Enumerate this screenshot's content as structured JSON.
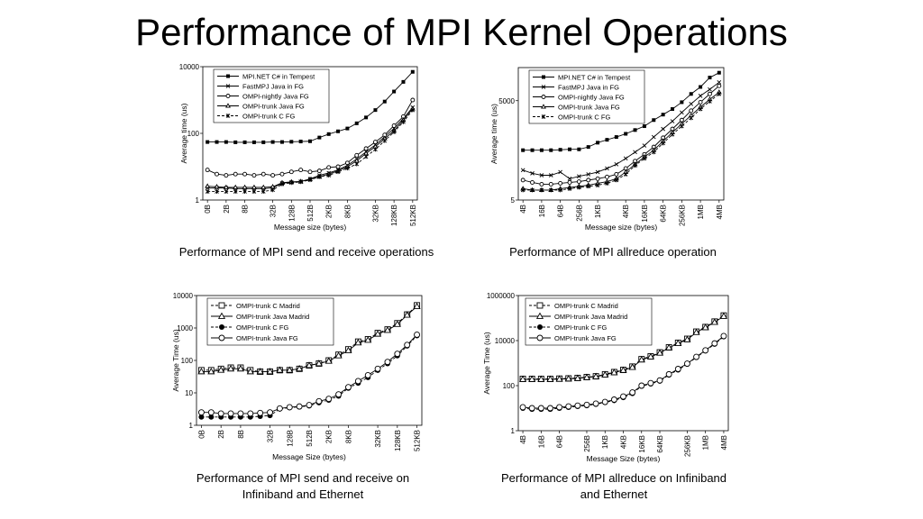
{
  "page": {
    "title": "Performance of MPI Kernel Operations",
    "captions": [
      "Performance of MPI send and receive operations",
      "Performance of MPI allreduce operation",
      "Performance of MPI send and receive on Infiniband and Ethernet",
      "Performance of MPI allreduce on Infiniband and Ethernet"
    ]
  },
  "chart_data": [
    {
      "type": "line",
      "xlabel": "Message size (bytes)",
      "ylabel": "Average time (us)",
      "yscale": "log",
      "ylim": [
        1,
        10000
      ],
      "yticks": [
        1,
        100,
        10000
      ],
      "xticks": [
        "0B",
        "2B",
        "8B",
        "32B",
        "128B",
        "512B",
        "2KB",
        "8KB",
        "32KB",
        "128KB",
        "512KB"
      ],
      "grid": false,
      "legend": "top-left",
      "series": [
        {
          "name": "MPI.NET C# in Tempest",
          "marker": "square-filled",
          "dash": "solid",
          "values": [
            55,
            55,
            55,
            54,
            54,
            54,
            54,
            55,
            55,
            56,
            57,
            58,
            75,
            95,
            115,
            140,
            200,
            300,
            500,
            900,
            1800,
            3500,
            7000
          ]
        },
        {
          "name": "FastMPJ Java in FG",
          "marker": "x",
          "dash": "solid",
          "values": [
            2.3,
            2.3,
            2.3,
            2.2,
            2.2,
            2.2,
            2.2,
            2.3,
            3.2,
            3.4,
            3.6,
            4.3,
            5.5,
            6.5,
            8,
            11,
            17,
            28,
            45,
            80,
            140,
            280,
            600
          ]
        },
        {
          "name": "OMPI-nightly Java FG",
          "marker": "circle-open",
          "dash": "solid",
          "values": [
            8,
            6,
            5.5,
            6,
            6,
            5.5,
            6,
            5.5,
            6,
            7,
            8,
            7,
            7.5,
            9.5,
            10,
            13,
            22,
            35,
            55,
            90,
            170,
            320,
            1000
          ]
        },
        {
          "name": "OMPI-trunk Java FG",
          "marker": "triangle-open",
          "dash": "solid",
          "values": [
            2.6,
            2.5,
            2.4,
            2.4,
            2.4,
            2.4,
            2.4,
            2.5,
            3.3,
            3.5,
            3.6,
            4.2,
            5,
            6,
            7.5,
            10,
            15,
            25,
            40,
            70,
            120,
            250,
            550
          ]
        },
        {
          "name": "OMPI-trunk C FG",
          "marker": "star",
          "dash": "dashed",
          "values": [
            1.8,
            1.8,
            1.8,
            1.8,
            1.8,
            1.8,
            1.8,
            2,
            3,
            3.3,
            3.5,
            4,
            5,
            5.5,
            7,
            9,
            12,
            20,
            33,
            60,
            110,
            220,
            500
          ]
        }
      ]
    },
    {
      "type": "line",
      "xlabel": "Message size (bytes)",
      "ylabel": "Average time (us)",
      "yscale": "log",
      "ylim": [
        5,
        50000
      ],
      "yticks": [
        5,
        5000
      ],
      "xticks": [
        "4B",
        "16B",
        "64B",
        "256B",
        "1KB",
        "4KB",
        "16KB",
        "64KB",
        "256KB",
        "1MB",
        "4MB"
      ],
      "grid": false,
      "legend": "top-left",
      "series": [
        {
          "name": "MPI.NET C# in Tempest",
          "marker": "square-filled",
          "dash": "solid",
          "values": [
            160,
            160,
            160,
            160,
            165,
            170,
            170,
            200,
            270,
            330,
            400,
            500,
            650,
            850,
            1300,
            1900,
            2800,
            4500,
            8000,
            13000,
            25000,
            35000
          ]
        },
        {
          "name": "FastMPJ Java in FG",
          "marker": "x",
          "dash": "solid",
          "values": [
            40,
            32,
            28,
            28,
            35,
            22,
            26,
            30,
            35,
            45,
            60,
            90,
            140,
            220,
            400,
            700,
            1200,
            2200,
            4000,
            7000,
            11000,
            18000
          ]
        },
        {
          "name": "OMPI-nightly Java FG",
          "marker": "circle-open",
          "dash": "solid",
          "values": [
            20,
            17,
            15,
            15,
            16,
            17,
            18,
            20,
            22,
            25,
            30,
            45,
            75,
            120,
            200,
            380,
            700,
            1300,
            2500,
            4500,
            8000,
            14000
          ]
        },
        {
          "name": "OMPI-trunk Java FG",
          "marker": "triangle-open",
          "dash": "solid",
          "values": [
            11,
            10,
            10,
            10,
            11,
            12,
            13,
            14,
            16,
            18,
            22,
            35,
            60,
            100,
            160,
            300,
            550,
            1000,
            1800,
            3200,
            5500,
            9000
          ]
        },
        {
          "name": "OMPI-trunk C FG",
          "marker": "star",
          "dash": "dashed",
          "values": [
            10,
            10,
            10,
            10,
            10,
            11,
            12,
            13,
            14,
            16,
            20,
            30,
            55,
            90,
            140,
            260,
            480,
            850,
            1500,
            2800,
            4800,
            8000
          ]
        }
      ]
    },
    {
      "type": "line",
      "xlabel": "Message Size (bytes)",
      "ylabel": "Average Time (us)",
      "yscale": "log",
      "ylim": [
        1,
        10000
      ],
      "yticks": [
        1,
        10,
        100,
        1000,
        10000
      ],
      "xticks": [
        "0B",
        "2B",
        "8B",
        "32B",
        "128B",
        "512B",
        "2KB",
        "8KB",
        "32KB",
        "128KB",
        "512KB"
      ],
      "grid": false,
      "legend": "top-left",
      "series": [
        {
          "name": "OMPI-trunk C Madrid",
          "marker": "square-open",
          "dash": "dashed",
          "values": [
            50,
            50,
            55,
            60,
            60,
            50,
            45,
            45,
            50,
            50,
            55,
            70,
            80,
            100,
            150,
            220,
            380,
            450,
            700,
            900,
            1400,
            2600,
            5000
          ]
        },
        {
          "name": "OMPI-trunk Java Madrid",
          "marker": "triangle-open",
          "dash": "solid",
          "values": [
            45,
            45,
            50,
            55,
            55,
            45,
            45,
            45,
            50,
            50,
            55,
            70,
            80,
            95,
            140,
            200,
            350,
            420,
            650,
            850,
            1300,
            2500,
            4600
          ]
        },
        {
          "name": "OMPI-trunk C FG",
          "marker": "circle-filled",
          "dash": "dashed",
          "values": [
            1.8,
            1.8,
            1.8,
            1.8,
            1.8,
            1.8,
            1.9,
            2,
            3.2,
            3.5,
            3.7,
            4,
            5,
            6,
            8,
            14,
            20,
            30,
            50,
            80,
            140,
            280,
            580
          ]
        },
        {
          "name": "OMPI-trunk Java FG",
          "marker": "circle-open",
          "dash": "solid",
          "values": [
            2.5,
            2.5,
            2.3,
            2.3,
            2.3,
            2.3,
            2.4,
            2.5,
            3.3,
            3.6,
            3.8,
            4.2,
            5.5,
            6.5,
            9,
            15,
            23,
            35,
            55,
            90,
            160,
            300,
            620
          ]
        }
      ]
    },
    {
      "type": "line",
      "xlabel": "Message Size (bytes)",
      "ylabel": "Average Time (us)",
      "yscale": "log",
      "ylim": [
        1,
        1000000
      ],
      "yticks": [
        1,
        100,
        10000,
        1000000
      ],
      "xticks": [
        "4B",
        "16B",
        "64B",
        "256B",
        "1KB",
        "4KB",
        "16KB",
        "64KB",
        "256KB",
        "1MB",
        "4MB"
      ],
      "grid": false,
      "legend": "top-left",
      "series": [
        {
          "name": "OMPI-trunk C Madrid",
          "marker": "square-open",
          "dash": "dashed",
          "values": [
            200,
            200,
            200,
            200,
            205,
            210,
            220,
            240,
            260,
            320,
            400,
            500,
            700,
            1500,
            2000,
            3000,
            5000,
            8000,
            12000,
            25000,
            40000,
            70000,
            130000
          ]
        },
        {
          "name": "OMPI-trunk Java Madrid",
          "marker": "triangle-open",
          "dash": "solid",
          "values": [
            190,
            190,
            190,
            190,
            195,
            200,
            210,
            230,
            250,
            300,
            380,
            480,
            650,
            1400,
            1900,
            2800,
            4800,
            7500,
            11000,
            23000,
            38000,
            65000,
            120000
          ]
        },
        {
          "name": "OMPI-trunk C FG",
          "marker": "circle-filled",
          "dash": "dashed",
          "values": [
            10,
            9,
            9,
            9,
            10,
            11,
            12,
            13,
            15,
            18,
            22,
            30,
            45,
            95,
            120,
            160,
            300,
            500,
            900,
            1800,
            3500,
            7000,
            15000
          ]
        },
        {
          "name": "OMPI-trunk Java FG",
          "marker": "circle-open",
          "dash": "solid",
          "values": [
            11,
            10,
            10,
            10,
            11,
            12,
            13,
            14,
            16,
            19,
            24,
            33,
            50,
            100,
            130,
            170,
            320,
            550,
            950,
            1900,
            3700,
            7500,
            16000
          ]
        }
      ]
    }
  ]
}
